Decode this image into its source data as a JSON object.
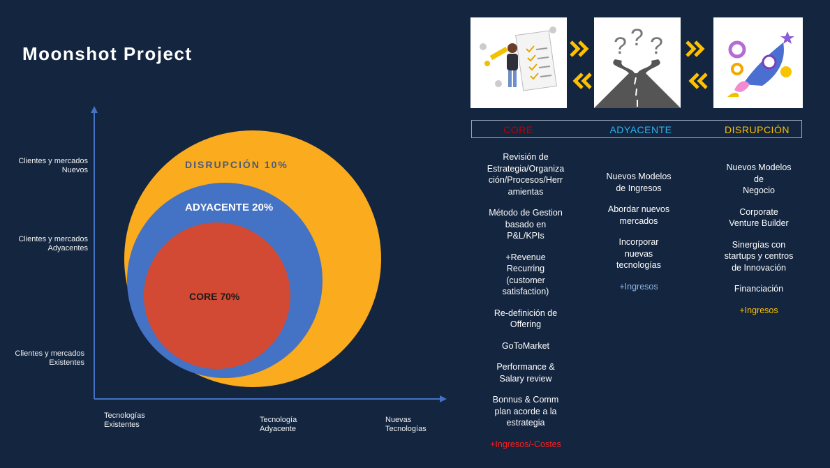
{
  "title": "Moonshot Project",
  "colors": {
    "background": "#13253f",
    "disrupcion": "#fbab1e",
    "adyacente": "#4472c4",
    "core": "#d24a34",
    "core_header": "#c00000",
    "adyacente_header": "#2eb3f0",
    "disrupcion_header": "#ffc000",
    "ingresos_core": "#ff1f1f",
    "ingresos_adyacente": "#8eb4e3",
    "ingresos_disrupcion": "#ffc000"
  },
  "diagram": {
    "y_labels": [
      "Clientes y mercados\nNuevos",
      "Clientes y mercados\nAdyacentes",
      "Clientes y mercados\nExistentes"
    ],
    "x_labels": [
      "Tecnologías\nExistentes",
      "Tecnología\nAdyacente",
      "Nuevas\nTecnologías"
    ],
    "circles": [
      {
        "name": "DISRUPCIÓN",
        "percent": "10%"
      },
      {
        "name": "ADYACENTE",
        "percent": "20%"
      },
      {
        "name": "CORE",
        "percent": "70%"
      }
    ],
    "labels": {
      "disrupcion": "DISRUPCIÓN 10%",
      "adyacente": "ADYACENTE 20%",
      "core": "CORE 70%"
    }
  },
  "headers": {
    "core": "CORE",
    "adyacente": "ADYACENTE",
    "disrupcion": "DISRUPCIÓN"
  },
  "illustrations": [
    "checklist-person-illustration",
    "crossroads-question-illustration",
    "rocket-innovation-illustration"
  ],
  "columns": {
    "core": {
      "items": [
        "Revisión de\nEstrategia/Organiza\nción/Procesos/Herr\namientas",
        "Método de Gestion\nbasado en\nP&L/KPIs",
        "+Revenue\nRecurring\n(customer\nsatisfaction)",
        "Re-definición de\nOffering",
        "GoToMarket",
        "Performance &\nSalary review",
        "Bonnus & Comm\nplan acorde a la\nestrategia"
      ],
      "result": "+Ingresos/-Costes"
    },
    "adyacente": {
      "items": [
        "Nuevos Modelos\nde Ingresos",
        "Abordar nuevos\nmercados",
        "Incorporar\nnuevas\ntecnologías"
      ],
      "result": "+Ingresos"
    },
    "disrupcion": {
      "items": [
        "Nuevos Modelos\nde\nNegocio",
        "Corporate\nVenture Builder",
        "Sinergías con\nstartups y centros\nde Innovación",
        "Financiación"
      ],
      "result": "+Ingresos"
    }
  }
}
